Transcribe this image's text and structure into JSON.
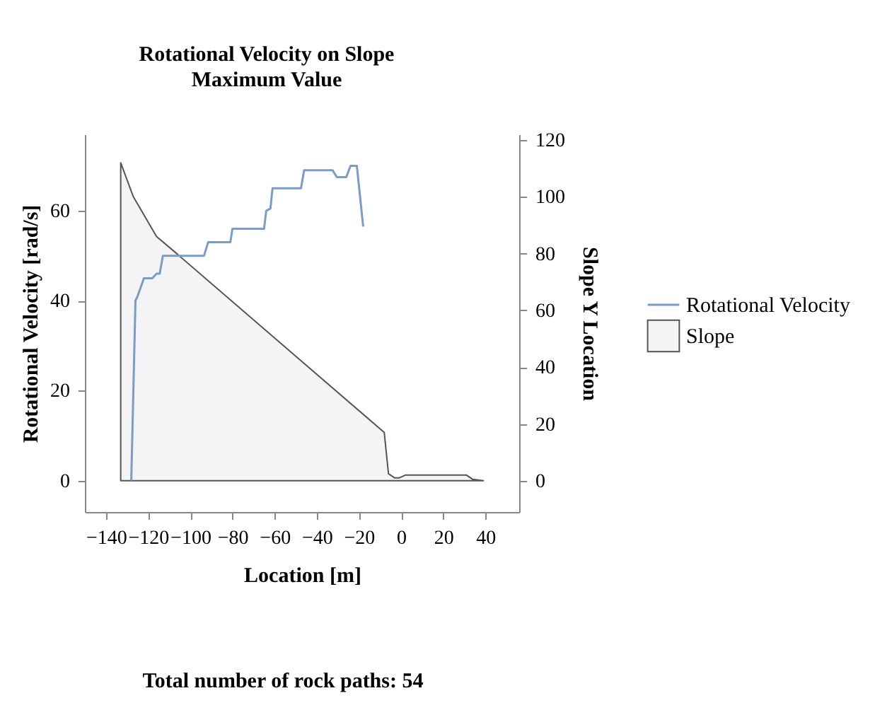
{
  "chart_data": {
    "type": "line",
    "title": "Rotational Velocity on Slope",
    "subtitle": "Maximum Value",
    "xlabel": "Location [m]",
    "ylabel": "Rotational Velocity [rad/s]",
    "y2label": "Slope Y Location",
    "xlim": [
      -150,
      56
    ],
    "xticks": [
      -140,
      -120,
      -100,
      -80,
      -60,
      -40,
      -20,
      0,
      20,
      40
    ],
    "ylim": [
      -7,
      77
    ],
    "yticks": [
      0,
      20,
      40,
      60
    ],
    "y2lim": [
      -11,
      122
    ],
    "y2ticks": [
      0,
      20,
      40,
      60,
      80,
      100,
      120
    ],
    "series": [
      {
        "name": "Rotational Velocity",
        "color": "#7a9cc6",
        "x": [
          -128,
          -126,
          -125,
          -122,
          -118,
          -116,
          -114.5,
          -113,
          -93.5,
          -91.5,
          -81,
          -80,
          -65,
          -64,
          -62,
          -61,
          -47.5,
          -46,
          -32.5,
          -30.5,
          -26,
          -24,
          -21,
          -18
        ],
        "values": [
          0,
          40,
          41,
          45,
          45,
          46,
          46,
          50,
          50,
          53,
          53,
          56,
          56,
          60,
          60.5,
          65,
          65,
          69,
          69,
          67.5,
          67.5,
          70,
          70,
          56.5
        ]
      },
      {
        "name": "Slope",
        "type": "area",
        "axis": "y2",
        "color": "#f4f4f6",
        "x": [
          -133,
          -127,
          -116,
          -108,
          -8,
          -6,
          -3,
          -1,
          2,
          31,
          34,
          39
        ],
        "values": [
          112,
          100,
          86,
          81,
          17,
          2.5,
          1,
          1,
          2,
          2,
          0.5,
          0
        ]
      }
    ],
    "legend": "right",
    "grid": false,
    "annotations": [
      "Total number of rock paths:  54"
    ]
  }
}
